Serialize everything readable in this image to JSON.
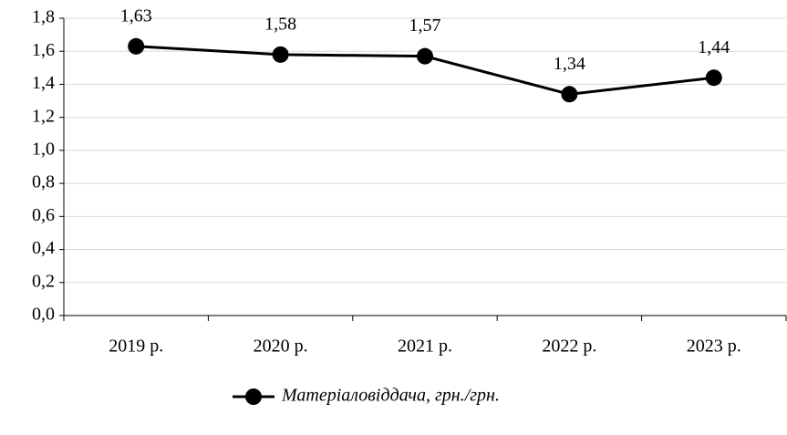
{
  "chart_data": {
    "type": "line",
    "categories": [
      "2019 р.",
      "2020 р.",
      "2021 р.",
      "2022 р.",
      "2023 р."
    ],
    "series": [
      {
        "name": "Матеріаловіддача, грн./грн.",
        "color": "#000000",
        "values": [
          1.63,
          1.58,
          1.57,
          1.34,
          1.44
        ],
        "value_labels": [
          "1,63",
          "1,58",
          "1,57",
          "1,34",
          "1,44"
        ]
      }
    ],
    "ylim": [
      0,
      1.8
    ],
    "yticks": [
      {
        "value": 0,
        "label": "0,0"
      },
      {
        "value": 0.2,
        "label": "0,2"
      },
      {
        "value": 0.4,
        "label": "0,4"
      },
      {
        "value": 0.6,
        "label": "0,6"
      },
      {
        "value": 0.8,
        "label": "0,8"
      },
      {
        "value": 1,
        "label": "1,0"
      },
      {
        "value": 1.2,
        "label": "1,2"
      },
      {
        "value": 1.4,
        "label": "1,4"
      },
      {
        "value": 1.6,
        "label": "1,6"
      },
      {
        "value": 1.8,
        "label": "1,8"
      }
    ],
    "grid": true,
    "legend": "bottom"
  }
}
